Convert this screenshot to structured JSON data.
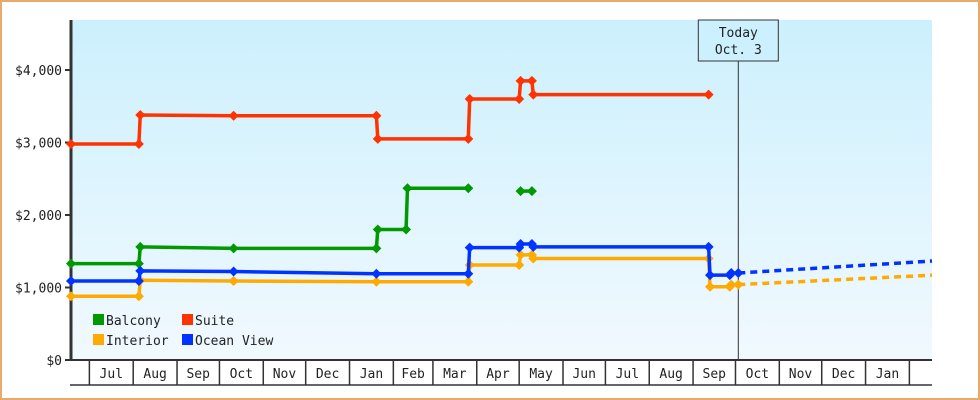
{
  "chart_data": {
    "type": "line",
    "step": true,
    "title": "",
    "xlabel": "",
    "ylabel": "",
    "x_range": [
      "2022-06-18",
      "2024-02-17"
    ],
    "ylim": [
      0,
      4690
    ],
    "y_ticks": [
      {
        "value": 0,
        "label": "$0"
      },
      {
        "value": 1000,
        "label": "$1,000"
      },
      {
        "value": 2000,
        "label": "$2,000"
      },
      {
        "value": 3000,
        "label": "$3,000"
      },
      {
        "value": 4000,
        "label": "$4,000"
      }
    ],
    "x_ticks": [
      {
        "start": "2022-07-01",
        "label": "Jul"
      },
      {
        "start": "2022-08-01",
        "label": "Aug"
      },
      {
        "start": "2022-09-01",
        "label": "Sep"
      },
      {
        "start": "2022-10-01",
        "label": "Oct"
      },
      {
        "start": "2022-11-01",
        "label": "Nov"
      },
      {
        "start": "2022-12-01",
        "label": "Dec"
      },
      {
        "start": "2023-01-01",
        "label": "Jan"
      },
      {
        "start": "2023-02-01",
        "label": "Feb"
      },
      {
        "start": "2023-03-01",
        "label": "Mar"
      },
      {
        "start": "2023-04-01",
        "label": "Apr"
      },
      {
        "start": "2023-05-01",
        "label": "May"
      },
      {
        "start": "2023-06-01",
        "label": "Jun"
      },
      {
        "start": "2023-07-01",
        "label": "Jul"
      },
      {
        "start": "2023-08-01",
        "label": "Aug"
      },
      {
        "start": "2023-09-01",
        "label": "Sep"
      },
      {
        "start": "2023-10-01",
        "label": "Oct"
      },
      {
        "start": "2023-11-01",
        "label": "Nov"
      },
      {
        "start": "2023-12-01",
        "label": "Dec"
      },
      {
        "start": "2024-01-01",
        "label": "Jan"
      },
      {
        "start": "2024-02-01",
        "label": "",
        "end": "2024-02-17"
      }
    ],
    "today": {
      "date": "2023-10-03",
      "line1": "Today",
      "line2": "Oct. 3"
    },
    "grid": false,
    "legend_position": "bottom-left",
    "series": [
      {
        "name": "Balcony",
        "color": "#009900",
        "points": [
          [
            "2022-06-18",
            1330
          ],
          [
            "2022-08-05",
            1330
          ],
          [
            "2022-08-06",
            1560
          ],
          [
            "2022-10-11",
            1540
          ],
          [
            "2023-01-20",
            1540
          ],
          [
            "2023-01-21",
            1800
          ],
          [
            "2023-02-10",
            1800
          ],
          [
            "2023-02-11",
            2370
          ],
          [
            "2023-03-26",
            2370
          ],
          null,
          [
            "2023-05-02",
            2330
          ],
          [
            "2023-05-10",
            2330
          ]
        ]
      },
      {
        "name": "Suite",
        "color": "#ff3300",
        "points": [
          [
            "2022-06-18",
            2980
          ],
          [
            "2022-08-05",
            2980
          ],
          [
            "2022-08-06",
            3380
          ],
          [
            "2022-10-11",
            3370
          ],
          [
            "2023-01-20",
            3370
          ],
          [
            "2023-01-21",
            3050
          ],
          [
            "2023-03-26",
            3050
          ],
          [
            "2023-03-27",
            3600
          ],
          [
            "2023-05-01",
            3600
          ],
          [
            "2023-05-02",
            3850
          ],
          [
            "2023-05-10",
            3850
          ],
          [
            "2023-05-11",
            3660
          ],
          [
            "2023-09-12",
            3660
          ]
        ]
      },
      {
        "name": "Interior",
        "color": "#ffaa00",
        "points": [
          [
            "2022-06-18",
            880
          ],
          [
            "2022-08-05",
            880
          ],
          [
            "2022-08-06",
            1100
          ],
          [
            "2022-10-11",
            1090
          ],
          [
            "2023-01-20",
            1080
          ],
          [
            "2023-03-26",
            1080
          ],
          [
            "2023-03-27",
            1310
          ],
          [
            "2023-05-01",
            1310
          ],
          [
            "2023-05-02",
            1450
          ],
          [
            "2023-05-10",
            1450
          ],
          [
            "2023-05-11",
            1400
          ],
          [
            "2023-09-12",
            1400
          ],
          [
            "2023-09-13",
            1010
          ],
          [
            "2023-09-27",
            1010
          ],
          [
            "2023-09-28",
            1040
          ],
          [
            "2023-10-03",
            1040
          ]
        ],
        "forecast": [
          [
            "2023-10-03",
            1040
          ],
          [
            "2024-02-17",
            1170
          ]
        ]
      },
      {
        "name": "Ocean View",
        "color": "#0033ff",
        "points": [
          [
            "2022-06-18",
            1090
          ],
          [
            "2022-08-05",
            1090
          ],
          [
            "2022-08-06",
            1230
          ],
          [
            "2022-10-11",
            1220
          ],
          [
            "2023-01-20",
            1190
          ],
          [
            "2023-03-26",
            1190
          ],
          [
            "2023-03-27",
            1550
          ],
          [
            "2023-05-01",
            1550
          ],
          [
            "2023-05-02",
            1600
          ],
          [
            "2023-05-10",
            1600
          ],
          [
            "2023-05-11",
            1560
          ],
          [
            "2023-09-12",
            1560
          ],
          [
            "2023-09-13",
            1170
          ],
          [
            "2023-09-27",
            1170
          ],
          [
            "2023-09-28",
            1200
          ],
          [
            "2023-10-03",
            1200
          ]
        ],
        "forecast": [
          [
            "2023-10-03",
            1200
          ],
          [
            "2024-02-17",
            1365
          ]
        ]
      }
    ]
  }
}
